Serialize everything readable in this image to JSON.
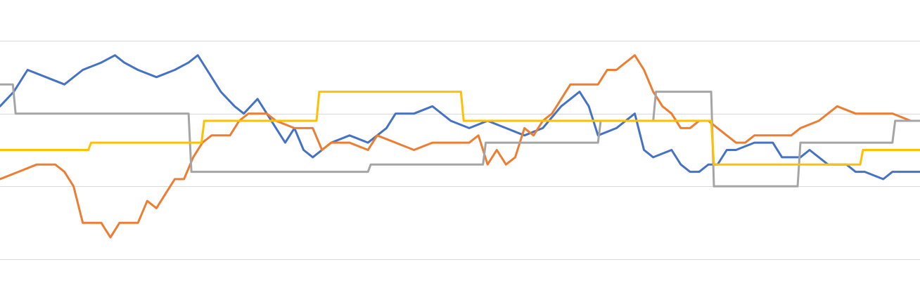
{
  "chart_data": {
    "type": "line",
    "title": "",
    "xlabel": "",
    "ylabel": "",
    "grid": true,
    "legend": "none",
    "ylim": [
      0,
      4
    ],
    "gridlines": [
      0,
      1,
      2,
      3,
      4
    ],
    "series": [
      {
        "color": "#4472C4",
        "points": [
          [
            0,
            2.1
          ],
          [
            1.5,
            2.3
          ],
          [
            3,
            2.6
          ],
          [
            5,
            2.5
          ],
          [
            7,
            2.4
          ],
          [
            9,
            2.6
          ],
          [
            11,
            2.7
          ],
          [
            12.5,
            2.8
          ],
          [
            13.5,
            2.7
          ],
          [
            15,
            2.6
          ],
          [
            17,
            2.5
          ],
          [
            19,
            2.6
          ],
          [
            20.5,
            2.7
          ],
          [
            21.5,
            2.8
          ],
          [
            22.5,
            2.6
          ],
          [
            24,
            2.3
          ],
          [
            25.5,
            2.1
          ],
          [
            26.5,
            2.0
          ],
          [
            28,
            2.2
          ],
          [
            30,
            1.8
          ],
          [
            31,
            1.6
          ],
          [
            32,
            1.8
          ],
          [
            33,
            1.5
          ],
          [
            34,
            1.4
          ],
          [
            36,
            1.6
          ],
          [
            38,
            1.7
          ],
          [
            40,
            1.6
          ],
          [
            42,
            1.8
          ],
          [
            43,
            2.0
          ],
          [
            45,
            2.0
          ],
          [
            47,
            2.1
          ],
          [
            49,
            1.9
          ],
          [
            51,
            1.8
          ],
          [
            53,
            1.9
          ],
          [
            55,
            1.8
          ],
          [
            57,
            1.7
          ],
          [
            59,
            1.8
          ],
          [
            61,
            2.1
          ],
          [
            62,
            2.2
          ],
          [
            63,
            2.3
          ],
          [
            64,
            2.1
          ],
          [
            65,
            1.7
          ],
          [
            67,
            1.8
          ],
          [
            69,
            2.0
          ],
          [
            70,
            1.5
          ],
          [
            71,
            1.4
          ],
          [
            73,
            1.5
          ],
          [
            74,
            1.3
          ],
          [
            75,
            1.2
          ],
          [
            76,
            1.2
          ],
          [
            77,
            1.3
          ],
          [
            78,
            1.3
          ],
          [
            79,
            1.5
          ],
          [
            80,
            1.5
          ],
          [
            82,
            1.6
          ],
          [
            84,
            1.6
          ],
          [
            85,
            1.4
          ],
          [
            87,
            1.4
          ],
          [
            88,
            1.5
          ],
          [
            90,
            1.3
          ],
          [
            92,
            1.3
          ],
          [
            93,
            1.2
          ],
          [
            94,
            1.2
          ],
          [
            96,
            1.1
          ],
          [
            97,
            1.2
          ],
          [
            98,
            1.2
          ],
          [
            100,
            1.2
          ]
        ]
      },
      {
        "color": "#ED7D31",
        "points": [
          [
            0,
            1.1
          ],
          [
            2,
            1.2
          ],
          [
            4,
            1.3
          ],
          [
            6,
            1.3
          ],
          [
            7,
            1.2
          ],
          [
            8,
            1.0
          ],
          [
            9,
            0.5
          ],
          [
            11,
            0.5
          ],
          [
            12,
            0.3
          ],
          [
            13,
            0.5
          ],
          [
            15,
            0.5
          ],
          [
            16,
            0.8
          ],
          [
            17,
            0.7
          ],
          [
            18,
            0.9
          ],
          [
            19,
            1.1
          ],
          [
            20,
            1.1
          ],
          [
            21,
            1.4
          ],
          [
            22,
            1.6
          ],
          [
            23,
            1.7
          ],
          [
            25,
            1.7
          ],
          [
            26,
            1.9
          ],
          [
            27,
            2.0
          ],
          [
            29,
            2.0
          ],
          [
            30,
            1.9
          ],
          [
            32,
            1.8
          ],
          [
            33,
            1.8
          ],
          [
            34,
            1.8
          ],
          [
            35,
            1.5
          ],
          [
            36,
            1.6
          ],
          [
            38,
            1.6
          ],
          [
            40,
            1.5
          ],
          [
            41,
            1.7
          ],
          [
            43,
            1.6
          ],
          [
            45,
            1.5
          ],
          [
            47,
            1.6
          ],
          [
            49,
            1.6
          ],
          [
            51,
            1.6
          ],
          [
            52,
            1.7
          ],
          [
            53,
            1.3
          ],
          [
            54,
            1.5
          ],
          [
            55,
            1.3
          ],
          [
            56,
            1.4
          ],
          [
            57,
            1.8
          ],
          [
            58,
            1.7
          ],
          [
            59,
            1.9
          ],
          [
            60,
            2.0
          ],
          [
            61,
            2.2
          ],
          [
            62,
            2.4
          ],
          [
            63,
            2.4
          ],
          [
            64,
            2.4
          ],
          [
            65,
            2.4
          ],
          [
            66,
            2.6
          ],
          [
            67,
            2.6
          ],
          [
            68,
            2.7
          ],
          [
            69,
            2.8
          ],
          [
            70,
            2.6
          ],
          [
            71,
            2.3
          ],
          [
            72,
            2.1
          ],
          [
            73,
            2.0
          ],
          [
            74,
            1.8
          ],
          [
            75,
            1.8
          ],
          [
            76,
            1.9
          ],
          [
            77,
            1.9
          ],
          [
            78,
            1.8
          ],
          [
            79,
            1.7
          ],
          [
            80,
            1.6
          ],
          [
            81,
            1.6
          ],
          [
            82,
            1.7
          ],
          [
            84,
            1.7
          ],
          [
            86,
            1.7
          ],
          [
            87,
            1.8
          ],
          [
            89,
            1.9
          ],
          [
            90,
            2.0
          ],
          [
            91,
            2.1
          ],
          [
            93,
            2.0
          ],
          [
            95,
            2.0
          ],
          [
            97,
            2.0
          ],
          [
            99,
            1.9
          ],
          [
            100,
            1.9
          ]
        ]
      },
      {
        "color": "#A5A5A5",
        "points": [
          [
            0,
            2.4
          ],
          [
            1.4,
            2.4
          ],
          [
            1.7,
            2.0
          ],
          [
            20.5,
            2.0
          ],
          [
            20.8,
            1.2
          ],
          [
            40,
            1.2
          ],
          [
            40.3,
            1.3
          ],
          [
            52.5,
            1.3
          ],
          [
            52.8,
            1.6
          ],
          [
            65,
            1.6
          ],
          [
            65.3,
            1.9
          ],
          [
            71,
            1.9
          ],
          [
            71.3,
            2.3
          ],
          [
            77.3,
            2.3
          ],
          [
            77.6,
            1.0
          ],
          [
            86.7,
            1.0
          ],
          [
            87,
            1.6
          ],
          [
            97,
            1.6
          ],
          [
            97.3,
            1.9
          ],
          [
            100,
            1.9
          ]
        ]
      },
      {
        "color": "#FFC000",
        "points": [
          [
            0,
            1.5
          ],
          [
            9.6,
            1.5
          ],
          [
            9.9,
            1.6
          ],
          [
            21.9,
            1.6
          ],
          [
            22.2,
            1.9
          ],
          [
            34.4,
            1.9
          ],
          [
            34.7,
            2.3
          ],
          [
            50.1,
            2.3
          ],
          [
            50.4,
            1.9
          ],
          [
            77.3,
            1.9
          ],
          [
            77.6,
            1.3
          ],
          [
            93.5,
            1.3
          ],
          [
            93.8,
            1.5
          ],
          [
            100,
            1.5
          ]
        ]
      }
    ]
  }
}
